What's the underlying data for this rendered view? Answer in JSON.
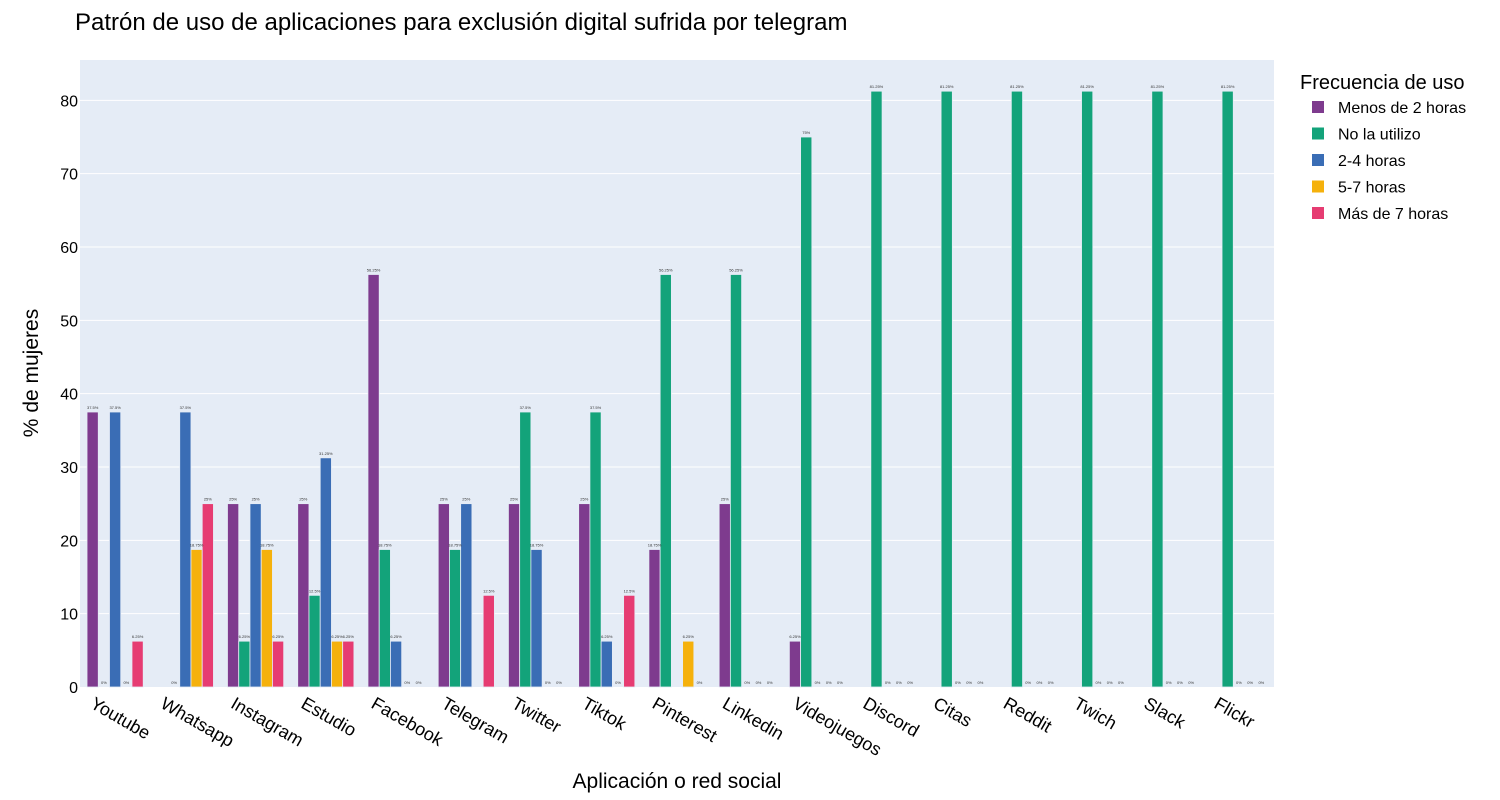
{
  "chart_data": {
    "type": "bar",
    "title": "Patrón de uso de aplicaciones para exclusión digital sufrida por telegram",
    "xlabel": "Aplicación o red social",
    "ylabel": "% de mujeres",
    "ylim": [
      0,
      85.5
    ],
    "yticks": [
      0,
      10,
      20,
      30,
      40,
      50,
      60,
      70,
      80
    ],
    "grid": true,
    "legend": {
      "title": "Frecuencia de uso",
      "placement": "top-right, outside plot"
    },
    "plot_background": "#e5ecf6",
    "categories": [
      "Youtube",
      "Whatsapp",
      "Instagram",
      "Estudio",
      "Facebook",
      "Telegram",
      "Twitter",
      "Tiktok",
      "Pinterest",
      "Linkedin",
      "Videojuegos",
      "Discord",
      "Citas",
      "Reddit",
      "Twich",
      "Slack",
      "Flickr"
    ],
    "series": [
      {
        "name": "Menos de 2 horas",
        "color": "#7e3b8e",
        "values": [
          37.5,
          null,
          25,
          25,
          56.25,
          25,
          25,
          25,
          18.75,
          25,
          6.25,
          null,
          null,
          null,
          null,
          null,
          null
        ],
        "labels": [
          "37.5%",
          "",
          "25%",
          "25%",
          "56.25%",
          "25%",
          "25%",
          "25%",
          "18.75%",
          "25%",
          "6.25%",
          "",
          "",
          "",
          "",
          "",
          ""
        ]
      },
      {
        "name": "No la utilizo",
        "color": "#13a37a",
        "values": [
          0,
          0,
          6.25,
          12.5,
          18.75,
          18.75,
          37.5,
          37.5,
          56.25,
          56.25,
          75,
          81.25,
          81.25,
          81.25,
          81.25,
          81.25,
          81.25
        ],
        "labels": [
          "0%",
          "0%",
          "6.25%",
          "12.5%",
          "18.75%",
          "18.75%",
          "37.5%",
          "37.5%",
          "56.25%",
          "56.25%",
          "75%",
          "81.25%",
          "81.25%",
          "81.25%",
          "81.25%",
          "81.25%",
          "81.25%"
        ]
      },
      {
        "name": "2-4 horas",
        "color": "#3a6db5",
        "values": [
          37.5,
          37.5,
          25,
          31.25,
          6.25,
          25,
          18.75,
          6.25,
          null,
          0,
          0,
          0,
          0,
          0,
          0,
          0,
          0
        ],
        "labels": [
          "37.5%",
          "37.5%",
          "25%",
          "31.25%",
          "6.25%",
          "25%",
          "18.75%",
          "6.25%",
          "",
          "0%",
          "0%",
          "0%",
          "0%",
          "0%",
          "0%",
          "0%",
          "0%"
        ]
      },
      {
        "name": "5-7 horas",
        "color": "#f5b10c",
        "values": [
          0,
          18.75,
          18.75,
          6.25,
          0,
          null,
          0,
          0,
          6.25,
          0,
          0,
          0,
          0,
          0,
          0,
          0,
          0
        ],
        "labels": [
          "0%",
          "18.75%",
          "18.75%",
          "6.25%",
          "0%",
          "",
          "0%",
          "0%",
          "6.25%",
          "0%",
          "0%",
          "0%",
          "0%",
          "0%",
          "0%",
          "0%",
          "0%"
        ]
      },
      {
        "name": "Más de 7 horas",
        "color": "#e63c72",
        "values": [
          6.25,
          25,
          6.25,
          6.25,
          0,
          12.5,
          0,
          12.5,
          0,
          0,
          0,
          0,
          0,
          0,
          0,
          0,
          0
        ],
        "labels": [
          "6.25%",
          "25%",
          "6.25%",
          "6.25%",
          "0%",
          "12.5%",
          "0%",
          "12.5%",
          "0%",
          "0%",
          "0%",
          "0%",
          "0%",
          "0%",
          "0%",
          "0%",
          "0%"
        ]
      }
    ]
  }
}
